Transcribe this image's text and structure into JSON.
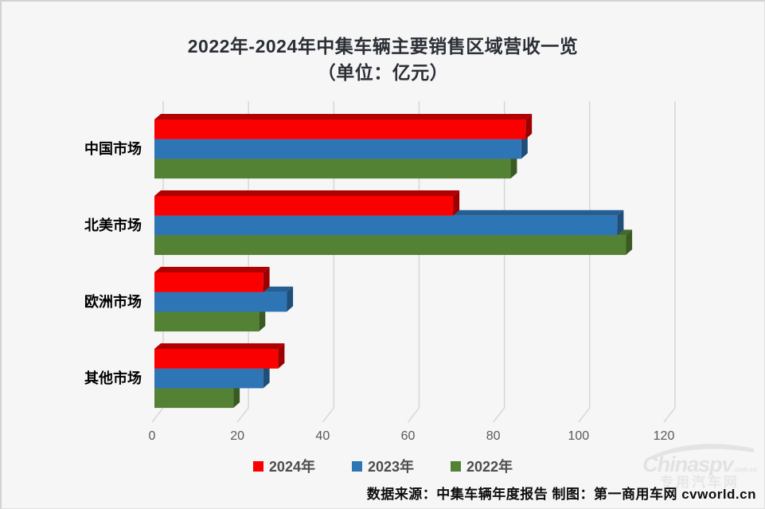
{
  "chart_data": {
    "type": "bar",
    "orientation": "horizontal",
    "title": "2022年-2024年中集车辆主要销售区域营收一览",
    "subtitle": "（单位：亿元）",
    "unit": "亿元",
    "categories": [
      "中国市场",
      "北美市场",
      "欧洲市场",
      "其他市场"
    ],
    "series": [
      {
        "name": "2024年",
        "color": "#fb0000",
        "top_shade": "#b10000",
        "side_shade": "#9d0000",
        "values": [
          87,
          70,
          25.5,
          29
        ]
      },
      {
        "name": "2023年",
        "color": "#2e75b6",
        "top_shade": "#255e92",
        "side_shade": "#1f4e79",
        "values": [
          86,
          108.5,
          31,
          25.5
        ]
      },
      {
        "name": "2022年",
        "color": "#548235",
        "top_shade": "#446a2b",
        "side_shade": "#3a5a23",
        "values": [
          83.5,
          110.5,
          24.5,
          18.5
        ]
      }
    ],
    "x_axis": {
      "min": 0,
      "max": 120,
      "ticks": [
        0,
        20,
        40,
        60,
        80,
        100,
        120
      ],
      "tick_label_color": "#595959"
    },
    "grid": true,
    "grid_color": "#d9d9d9",
    "legend_position": "bottom",
    "style": "3d-horizontal-bar"
  },
  "footer": {
    "source": "数据来源：中集车辆年度报告 制图：第一商用车网 cvworld.cn"
  },
  "watermark": {
    "brand": "Chinaspv",
    "suffix": ".com.cn",
    "subtitle": "专用汽车网"
  }
}
